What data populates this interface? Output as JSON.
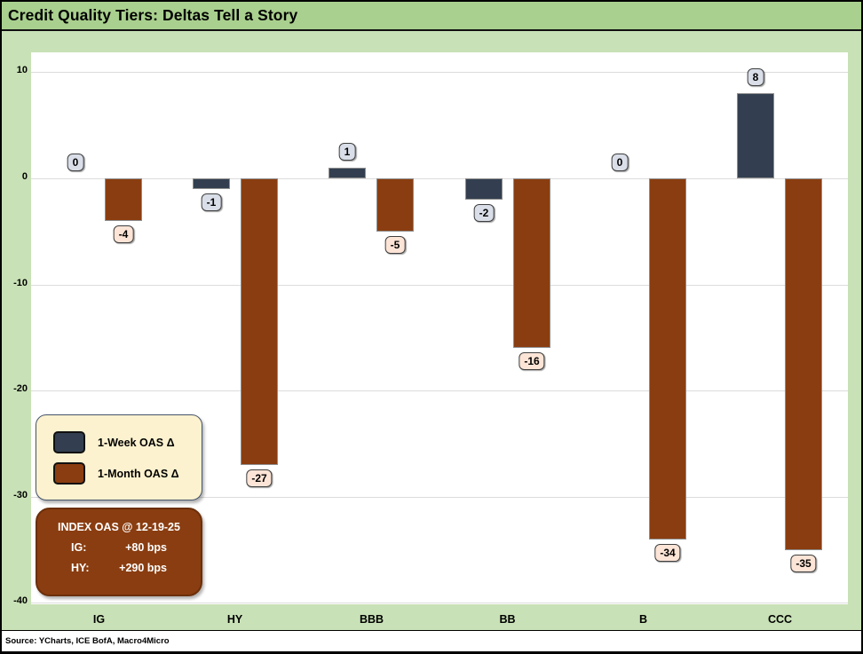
{
  "title_bar": {
    "title": "Credit Quality Tiers: Deltas Tell a Story"
  },
  "chart_data": {
    "type": "bar",
    "title": "Credit Quality Tiers: Deltas Tell a Story",
    "categories": [
      "IG",
      "HY",
      "BBB",
      "BB",
      "B",
      "CCC"
    ],
    "series": [
      {
        "name": "1-Week OAS Δ",
        "values": [
          0,
          -1,
          1,
          -2,
          0,
          8
        ],
        "color": "#333F50",
        "label_bg": "#D9DEE8"
      },
      {
        "name": "1-Month OAS Δ",
        "values": [
          -4,
          -27,
          -5,
          -16,
          -34,
          -35
        ],
        "color": "#8A3D10",
        "label_bg": "#FCE4D6"
      }
    ],
    "ylim": [
      -40,
      10
    ],
    "yticks": [
      10,
      0,
      -10,
      -20,
      -30,
      -40
    ],
    "grid": true,
    "legend_position": "lower-left",
    "xlabel": "",
    "ylabel": ""
  },
  "annotation_box": {
    "title": "INDEX OAS @ 12-19-25",
    "rows": [
      {
        "label": "IG:",
        "value": "+80 bps"
      },
      {
        "label": "HY:",
        "value": "+290 bps"
      }
    ]
  },
  "footer": {
    "source": "Source: YCharts, ICE BofA, Macro4Micro"
  },
  "colors": {
    "title_bar_bg": "#A9D08E",
    "body_bg": "#C8E1B6",
    "plot_bg": "#FFFFFF",
    "gridline": "#DCDCDC",
    "week_bar": "#333F50",
    "month_bar": "#8A3D10",
    "week_label_bg": "#D9DEE8",
    "month_label_bg": "#FCE4D6",
    "legend_bg": "#FDF2CF",
    "annotation_bg": "#8A3D10"
  }
}
